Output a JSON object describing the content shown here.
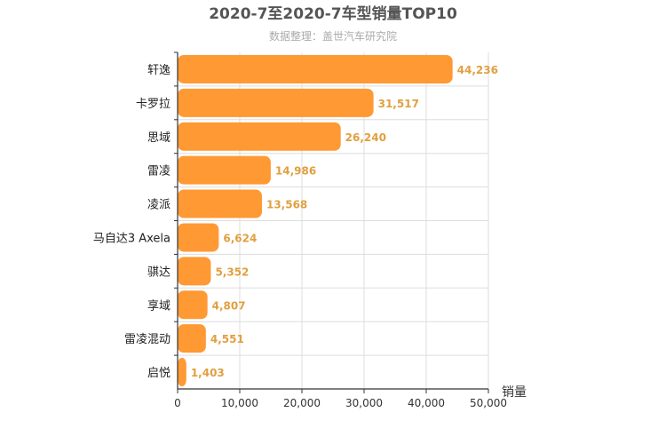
{
  "chart_data": {
    "type": "bar",
    "orientation": "horizontal",
    "title": "2020-7至2020-7车型销量TOP10",
    "subtitle": "数据整理：盖世汽车研究院",
    "xlabel": "销量",
    "ylabel": "",
    "categories": [
      "轩逸",
      "卡罗拉",
      "思域",
      "雷凌",
      "凌派",
      "马自达3 Axela",
      "骐达",
      "享域",
      "雷凌混动",
      "启悦"
    ],
    "values": [
      44236,
      31517,
      26240,
      14986,
      13568,
      6624,
      5352,
      4807,
      4551,
      1403
    ],
    "value_labels": [
      "44,236",
      "31,517",
      "26,240",
      "14,986",
      "13,568",
      "6,624",
      "5,352",
      "4,807",
      "4,551",
      "1,403"
    ],
    "xlim": [
      0,
      50000
    ],
    "xticks": [
      0,
      10000,
      20000,
      30000,
      40000,
      50000
    ],
    "xtick_labels": [
      "0",
      "10,000",
      "20,000",
      "30,000",
      "40,000",
      "50,000"
    ],
    "grid": true,
    "colors": {
      "bar": "#FF9933",
      "value_label": "#E0A040",
      "title": "#555555",
      "subtitle": "#AAAAAA",
      "grid": "#DDDDDD",
      "axis": "#333333"
    }
  }
}
